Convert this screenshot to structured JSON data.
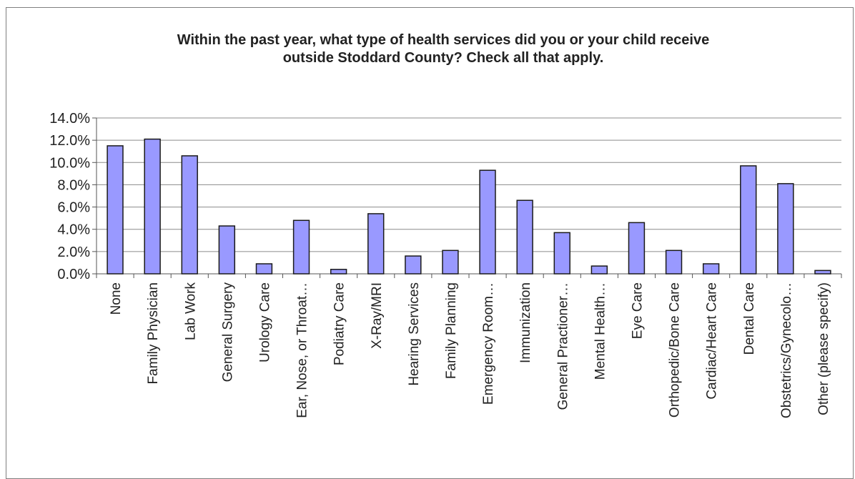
{
  "chart_data": {
    "type": "bar",
    "title": "Within the past year, what type of health services did you or your child receive\noutside Stoddard County?  Check all that apply.",
    "xlabel": "",
    "ylabel": "",
    "ylim": [
      0,
      14
    ],
    "yticks": [
      "0.0%",
      "2.0%",
      "4.0%",
      "6.0%",
      "8.0%",
      "10.0%",
      "12.0%",
      "14.0%"
    ],
    "grid": true,
    "legend": "none",
    "bar_color": "#9999ff",
    "bar_edge_color": "#1a1a1a",
    "categories": [
      "None",
      "Family Physician",
      "Lab Work",
      "General Surgery",
      "Urology Care",
      "Ear, Nose, or Throat…",
      "Podiatry Care",
      "X-Ray/MRI",
      "Hearing Services",
      "Family Planning",
      "Emergency Room…",
      "Immunization",
      "General Practioner…",
      "Mental Health…",
      "Eye Care",
      "Orthopedic/Bone Care",
      "Cardiac/Heart Care",
      "Dental Care",
      "Obstetrics/Gynecolo…",
      "Other (please specify)"
    ],
    "values": [
      11.5,
      12.1,
      10.6,
      4.3,
      0.9,
      4.8,
      0.4,
      5.4,
      1.6,
      2.1,
      9.3,
      6.6,
      3.7,
      0.7,
      4.6,
      2.1,
      0.9,
      9.7,
      8.1,
      0.3
    ]
  }
}
